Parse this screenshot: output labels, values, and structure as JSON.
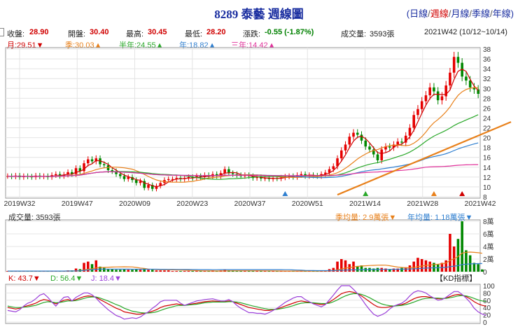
{
  "header": {
    "title": "8289 泰藝  週線圖",
    "periods": [
      {
        "label": "日線",
        "active": false
      },
      {
        "label": "週線",
        "active": true
      },
      {
        "label": "月線",
        "active": false
      },
      {
        "label": "季線",
        "active": false
      },
      {
        "label": "年線",
        "active": false
      }
    ],
    "range": "2021W42 (10/12~10/14)"
  },
  "quote": {
    "close_label": "收盤:",
    "close": "28.90",
    "open_label": "開盤:",
    "open": "30.40",
    "high_label": "最高:",
    "high": "30.45",
    "low_label": "最低:",
    "low": "28.20",
    "change_label": "漲跌:",
    "change": "-0.55 (-1.87%)",
    "volume_label": "成交量:",
    "volume": "3593張"
  },
  "ma_legend": [
    {
      "label": "月:29.51",
      "arrow": "▼",
      "color": "#d00000"
    },
    {
      "label": "季:30.03",
      "arrow": "▲",
      "color": "#e8801a"
    },
    {
      "label": "半年:24.55",
      "arrow": "▲",
      "color": "#2aa82a"
    },
    {
      "label": "年:18.82",
      "arrow": "▲",
      "color": "#2f7fd0"
    },
    {
      "label": "三年:14.42",
      "arrow": "▲",
      "color": "#e0309a"
    }
  ],
  "volume_legend": {
    "volume": "成交量: 3593張",
    "q_avg": "季均量: 2.9萬張",
    "q_arrow": "▼",
    "y_avg": "年均量: 1.18萬張",
    "y_arrow": "▼"
  },
  "kd_legend": {
    "k": "K: 43.7",
    "k_arrow": "▼",
    "d": "D: 56.4",
    "d_arrow": "▼",
    "j": "J: 18.4",
    "j_arrow": "▼",
    "button": "【KD指標】"
  },
  "colors": {
    "up": "#e60000",
    "down": "#008800",
    "k": "#d00000",
    "d": "#2aa82a",
    "j": "#9b3fd9",
    "trend": "#e8801a"
  },
  "chart_data": [
    {
      "type": "candlestick",
      "x_ticks": [
        "2019W32",
        "2019W47",
        "2020W09",
        "2020W23",
        "2020W37",
        "2020W51",
        "2021W14",
        "2021W28",
        "2021W42"
      ],
      "ylim": [
        8,
        38
      ],
      "y_ticks": [
        8,
        10,
        12,
        14,
        16,
        18,
        20,
        22,
        24,
        26,
        28,
        30,
        32,
        34,
        36,
        38
      ],
      "close": [
        12.2,
        12.1,
        12.3,
        12.0,
        12.2,
        12.1,
        12.0,
        12.3,
        12.1,
        12.2,
        12.0,
        12.4,
        12.6,
        12.2,
        12.5,
        13.0,
        12.6,
        13.8,
        13.2,
        14.8,
        15.6,
        15.2,
        15.8,
        14.6,
        14.4,
        13.4,
        13.2,
        12.6,
        12.2,
        11.6,
        12.0,
        11.4,
        10.8,
        11.2,
        9.8,
        10.4,
        9.6,
        10.2,
        10.8,
        11.4,
        11.6,
        11.6,
        11.8,
        11.6,
        11.8,
        12.0,
        11.8,
        12.2,
        12.0,
        12.4,
        12.1,
        12.6,
        12.2,
        12.8,
        13.6,
        12.8,
        12.6,
        12.4,
        12.2,
        12.4,
        12.2,
        11.8,
        12.0,
        11.7,
        11.8,
        11.6,
        11.8,
        11.7,
        11.9,
        12.1,
        12.2,
        12.0,
        12.4,
        12.6,
        12.2,
        12.4,
        12.3,
        12.2,
        12.6,
        12.9,
        13.6,
        14.2,
        15.8,
        17.4,
        18.6,
        20.2,
        21.0,
        20.6,
        19.4,
        18.2,
        17.6,
        16.6,
        15.4,
        17.6,
        18.2,
        18.0,
        18.6,
        19.2,
        19.0,
        20.4,
        22.0,
        24.6,
        25.8,
        27.4,
        28.6,
        30.2,
        29.4,
        27.6,
        28.4,
        30.6,
        33.2,
        36.4,
        35.2,
        32.4,
        31.6,
        30.2,
        29.8,
        28.9
      ],
      "moving_averages": [
        {
          "label": "月:29.51",
          "end": 29.51
        },
        {
          "label": "季:30.03",
          "end": 30.03
        },
        {
          "label": "半年:24.55",
          "end": 24.55
        },
        {
          "label": "年:18.82",
          "end": 18.82
        },
        {
          "label": "三年:14.42",
          "end": 14.42
        }
      ]
    },
    {
      "type": "bar",
      "ylim": [
        0,
        8
      ],
      "y_ticks": [
        0,
        2,
        4,
        6,
        8
      ],
      "y_tick_labels": [
        "0",
        "2萬",
        "4萬",
        "6萬",
        "8萬"
      ],
      "unit": "萬張",
      "values": [
        0.1,
        0.1,
        0.1,
        0.1,
        0.1,
        0.1,
        0.1,
        0.1,
        0.1,
        0.1,
        0.1,
        0.1,
        0.1,
        0.1,
        0.1,
        0.2,
        0.2,
        0.5,
        0.4,
        1.4,
        1.6,
        1.2,
        1.8,
        0.8,
        0.6,
        0.4,
        0.4,
        0.3,
        0.3,
        0.4,
        0.3,
        0.3,
        0.4,
        0.3,
        0.5,
        0.3,
        0.3,
        0.2,
        0.2,
        0.2,
        0.2,
        0.1,
        0.1,
        0.1,
        0.1,
        0.1,
        0.1,
        0.1,
        0.1,
        0.1,
        0.1,
        0.2,
        0.1,
        0.2,
        0.3,
        0.2,
        0.2,
        0.1,
        0.1,
        0.1,
        0.1,
        0.1,
        0.1,
        0.1,
        0.1,
        0.1,
        0.1,
        0.1,
        0.1,
        0.1,
        0.1,
        0.1,
        0.1,
        0.1,
        0.1,
        0.1,
        0.1,
        0.1,
        0.2,
        0.2,
        0.4,
        0.6,
        1.6,
        2.0,
        1.8,
        1.2,
        1.6,
        0.9,
        1.0,
        0.6,
        0.6,
        0.5,
        0.6,
        0.6,
        0.5,
        0.4,
        0.5,
        0.5,
        0.6,
        0.7,
        1.0,
        1.6,
        2.2,
        2.0,
        1.8,
        1.6,
        1.4,
        1.2,
        1.4,
        1.8,
        6.0,
        4.0,
        5.2,
        8.0,
        3.4,
        2.6,
        1.4,
        1.2,
        0.36
      ]
    },
    {
      "type": "line",
      "ylim": [
        0,
        100
      ],
      "y_ticks": [
        0,
        20,
        40,
        60,
        80,
        100
      ],
      "series": [
        {
          "name": "K",
          "values": [
            40,
            38,
            36,
            38,
            42,
            45,
            48,
            52,
            58,
            62,
            60,
            55,
            50,
            55,
            60,
            62,
            58,
            62,
            66,
            70,
            72,
            71,
            68,
            62,
            56,
            50,
            44,
            38,
            34,
            28,
            26,
            24,
            22,
            22,
            24,
            26,
            30,
            34,
            40,
            44,
            46,
            48,
            50,
            48,
            46,
            48,
            50,
            52,
            54,
            56,
            57,
            58,
            57,
            56,
            56,
            58,
            56,
            52,
            48,
            44,
            40,
            38,
            36,
            34,
            32,
            32,
            34,
            36,
            40,
            44,
            48,
            52,
            56,
            58,
            56,
            54,
            52,
            50,
            48,
            50,
            55,
            62,
            70,
            78,
            82,
            84,
            82,
            78,
            72,
            64,
            56,
            48,
            42,
            40,
            40,
            42,
            44,
            46,
            48,
            52,
            58,
            64,
            68,
            70,
            70,
            68,
            66,
            64,
            64,
            66,
            70,
            74,
            76,
            74,
            70,
            64,
            56,
            50,
            46,
            43.7
          ]
        },
        {
          "name": "D",
          "values": [
            44,
            42,
            40,
            40,
            41,
            42,
            44,
            46,
            50,
            54,
            56,
            55,
            53,
            54,
            56,
            58,
            58,
            59,
            62,
            65,
            68,
            69,
            69,
            66,
            62,
            58,
            53,
            48,
            44,
            38,
            34,
            30,
            28,
            26,
            25,
            25,
            26,
            28,
            32,
            36,
            39,
            42,
            45,
            46,
            46,
            47,
            48,
            49,
            51,
            53,
            54,
            55,
            55,
            55,
            55,
            56,
            56,
            55,
            53,
            50,
            47,
            44,
            42,
            39,
            37,
            35,
            35,
            35,
            37,
            39,
            42,
            45,
            49,
            52,
            53,
            53,
            53,
            52,
            51,
            51,
            52,
            56,
            61,
            67,
            72,
            76,
            78,
            78,
            76,
            72,
            67,
            61,
            55,
            50,
            47,
            45,
            44,
            45,
            46,
            48,
            51,
            55,
            59,
            63,
            65,
            66,
            66,
            66,
            65,
            65,
            67,
            69,
            72,
            73,
            72,
            69,
            65,
            61,
            58,
            56.4
          ]
        },
        {
          "name": "J",
          "values": [
            32,
            30,
            28,
            34,
            44,
            52,
            56,
            64,
            74,
            78,
            68,
            55,
            44,
            57,
            68,
            70,
            58,
            68,
            74,
            80,
            80,
            75,
            66,
            54,
            44,
            34,
            26,
            18,
            14,
            8,
            10,
            12,
            10,
            14,
            22,
            28,
            38,
            46,
            56,
            60,
            60,
            60,
            60,
            52,
            46,
            50,
            54,
            58,
            60,
            62,
            63,
            64,
            61,
            58,
            58,
            62,
            56,
            46,
            38,
            32,
            26,
            26,
            24,
            24,
            22,
            26,
            32,
            38,
            46,
            54,
            60,
            66,
            70,
            70,
            62,
            56,
            50,
            46,
            42,
            48,
            61,
            74,
            88,
            100,
            100,
            100,
            90,
            78,
            64,
            48,
            34,
            22,
            16,
            20,
            26,
            36,
            44,
            48,
            52,
            60,
            72,
            82,
            86,
            84,
            80,
            72,
            66,
            60,
            62,
            68,
            76,
            84,
            84,
            76,
            66,
            54,
            38,
            28,
            22,
            18.4
          ]
        }
      ]
    }
  ]
}
